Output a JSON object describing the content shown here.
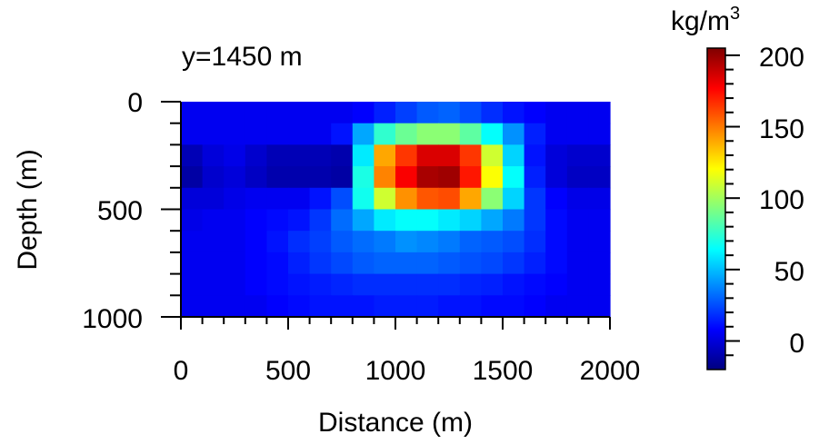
{
  "chart_data": {
    "type": "heatmap",
    "title": "y=1450 m",
    "xlabel": "Distance (m)",
    "ylabel": "Depth (m)",
    "xlim": [
      0,
      2000
    ],
    "ylim": [
      0,
      1000
    ],
    "y_inverted": true,
    "x_ticks": [
      "0",
      "500",
      "1000",
      "1500",
      "2000"
    ],
    "y_ticks": [
      "0",
      "500",
      "1000"
    ],
    "x": [
      50,
      150,
      250,
      350,
      450,
      550,
      650,
      750,
      850,
      950,
      1050,
      1150,
      1250,
      1350,
      1450,
      1550,
      1650,
      1750,
      1850,
      1950
    ],
    "y": [
      50,
      150,
      250,
      350,
      450,
      550,
      650,
      750,
      850,
      950
    ],
    "values": [
      [
        5,
        5,
        5,
        5,
        5,
        5,
        5,
        5,
        8,
        15,
        22,
        28,
        30,
        25,
        18,
        12,
        8,
        5,
        5,
        5
      ],
      [
        5,
        5,
        5,
        5,
        5,
        5,
        5,
        12,
        45,
        75,
        88,
        95,
        95,
        85,
        65,
        40,
        15,
        5,
        5,
        5
      ],
      [
        -8,
        0,
        3,
        -3,
        -8,
        -8,
        -8,
        -10,
        60,
        140,
        165,
        185,
        185,
        165,
        110,
        55,
        12,
        0,
        -3,
        -3
      ],
      [
        -12,
        -3,
        0,
        -5,
        -10,
        -10,
        -10,
        -12,
        70,
        148,
        178,
        196,
        198,
        172,
        120,
        65,
        15,
        0,
        -5,
        -5
      ],
      [
        0,
        0,
        3,
        5,
        5,
        5,
        12,
        25,
        68,
        110,
        145,
        158,
        160,
        140,
        95,
        55,
        20,
        8,
        3,
        3
      ],
      [
        3,
        5,
        5,
        8,
        10,
        12,
        20,
        32,
        45,
        60,
        65,
        65,
        60,
        55,
        45,
        35,
        20,
        10,
        5,
        5
      ],
      [
        5,
        5,
        5,
        8,
        12,
        18,
        22,
        28,
        32,
        35,
        40,
        38,
        35,
        30,
        28,
        25,
        18,
        10,
        5,
        5
      ],
      [
        5,
        5,
        5,
        8,
        10,
        15,
        20,
        24,
        28,
        30,
        30,
        30,
        28,
        26,
        24,
        20,
        15,
        10,
        5,
        5
      ],
      [
        5,
        5,
        5,
        8,
        10,
        12,
        14,
        16,
        18,
        18,
        18,
        18,
        18,
        16,
        15,
        12,
        10,
        8,
        5,
        5
      ],
      [
        5,
        5,
        5,
        5,
        8,
        10,
        12,
        12,
        12,
        14,
        14,
        14,
        12,
        12,
        10,
        10,
        8,
        5,
        5,
        5
      ]
    ],
    "colorbar": {
      "unit_base": "kg/m",
      "unit_exp": "3",
      "range": [
        -20,
        205
      ],
      "ticks": [
        "200",
        "150",
        "100",
        "50",
        "0"
      ],
      "colormap": "jet"
    }
  }
}
